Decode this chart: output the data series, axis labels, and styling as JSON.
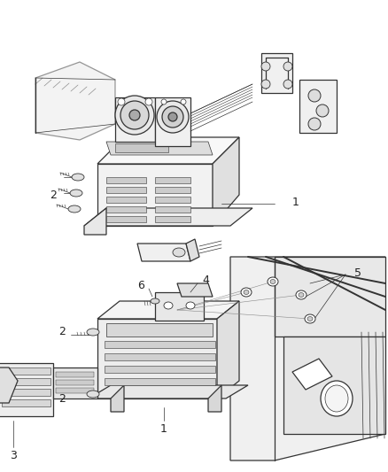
{
  "bg_color": "#ffffff",
  "line_color": "#333333",
  "label_color": "#222222",
  "lw_main": 0.9,
  "lw_thin": 0.5,
  "lw_thick": 1.4
}
